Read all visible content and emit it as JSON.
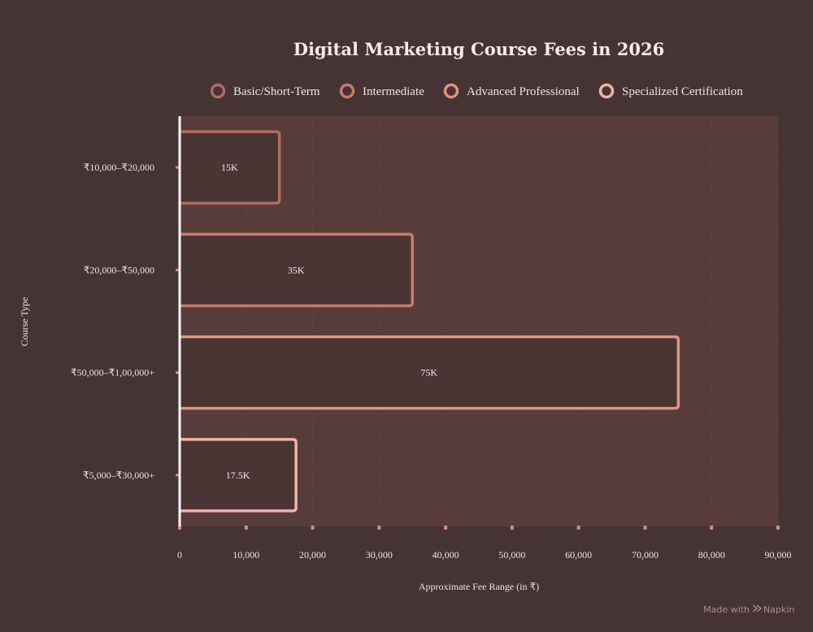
{
  "chart_data": {
    "type": "bar",
    "orientation": "horizontal",
    "title": "Digital Marketing Course Fees in 2026",
    "xlabel": "Approximate Fee Range (in ₹)",
    "ylabel": "Course Type",
    "xlim": [
      0,
      90000
    ],
    "xticks": [
      "0",
      "10,000",
      "20,000",
      "30,000",
      "40,000",
      "50,000",
      "60,000",
      "70,000",
      "80,000",
      "90,000"
    ],
    "categories": [
      "₹10,000–₹20,000",
      "₹20,000–₹50,000",
      "₹50,000–₹1,00,000+",
      "₹5,000–₹30,000+"
    ],
    "values": [
      15000,
      35000,
      75000,
      17500
    ],
    "data_labels": [
      "15K",
      "35K",
      "75K",
      "17.5K"
    ],
    "legend": {
      "placement": "top",
      "entries": [
        {
          "label": "Basic/Short-Term",
          "color": "#b06b60"
        },
        {
          "label": "Intermediate",
          "color": "#c97a6c"
        },
        {
          "label": "Advanced Professional",
          "color": "#de9484"
        },
        {
          "label": "Specialized Certification",
          "color": "#f2b3a5"
        }
      ]
    },
    "bar_colors": [
      "#b06b60",
      "#c97a6c",
      "#de9484",
      "#f2b3a5"
    ],
    "grid": true
  },
  "watermark": {
    "prefix": "Made with",
    "brand": "Napkin"
  },
  "colors": {
    "background": "#463333",
    "plot_background": "#573c3b",
    "bar_fill": "#4a3535",
    "axis": "#ffffff",
    "tick_mark": "#d98a7c"
  }
}
